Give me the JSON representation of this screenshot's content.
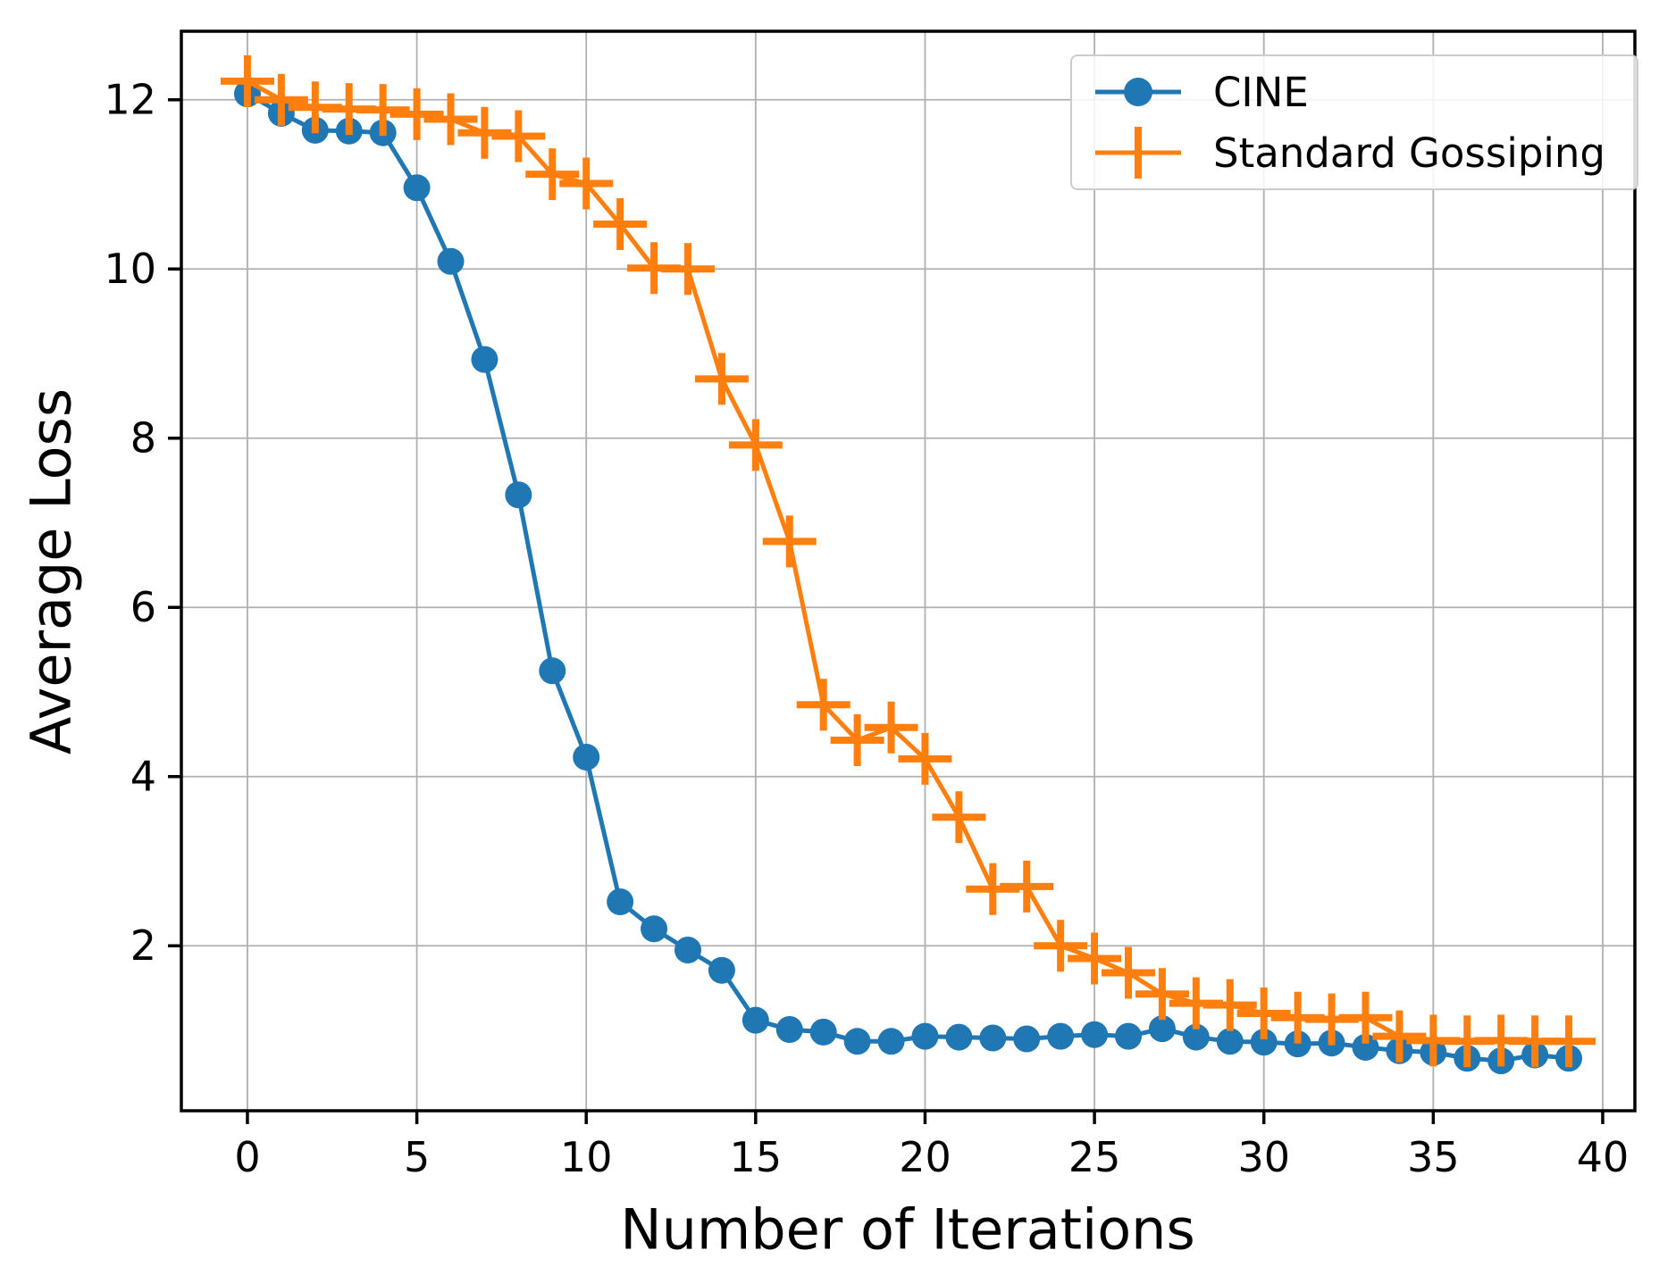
{
  "chart_data": {
    "type": "line",
    "title": "",
    "xlabel": "Number of Iterations",
    "ylabel": "Average Loss",
    "xlim": [
      -1.95,
      40.95
    ],
    "ylim": [
      0.05,
      12.81
    ],
    "x_ticks": [
      0,
      5,
      10,
      15,
      20,
      25,
      30,
      35,
      40
    ],
    "y_ticks": [
      2,
      4,
      6,
      8,
      10,
      12
    ],
    "grid": true,
    "legend_position": "upper right",
    "x": [
      0,
      1,
      2,
      3,
      4,
      5,
      6,
      7,
      8,
      9,
      10,
      11,
      12,
      13,
      14,
      15,
      16,
      17,
      18,
      19,
      20,
      21,
      22,
      23,
      24,
      25,
      26,
      27,
      28,
      29,
      30,
      31,
      32,
      33,
      34,
      35,
      36,
      37,
      38,
      39
    ],
    "series": [
      {
        "name": "CINE",
        "color": "#1f77b4",
        "marker": "circle",
        "values": [
          12.07,
          11.84,
          11.64,
          11.63,
          11.61,
          10.96,
          10.09,
          8.93,
          7.33,
          5.25,
          4.23,
          2.52,
          2.2,
          1.95,
          1.71,
          1.12,
          1.01,
          0.98,
          0.87,
          0.87,
          0.93,
          0.92,
          0.91,
          0.9,
          0.93,
          0.95,
          0.93,
          1.02,
          0.92,
          0.87,
          0.86,
          0.84,
          0.85,
          0.8,
          0.76,
          0.74,
          0.67,
          0.64,
          0.71,
          0.67
        ]
      },
      {
        "name": "Standard Gossiping",
        "color": "#ff7f0e",
        "marker": "plus",
        "values": [
          12.22,
          12.0,
          11.91,
          11.89,
          11.88,
          11.83,
          11.77,
          11.61,
          11.57,
          11.12,
          11.01,
          10.53,
          10.01,
          10.0,
          8.7,
          7.92,
          6.78,
          4.85,
          4.43,
          4.58,
          4.21,
          3.52,
          2.67,
          2.7,
          2.0,
          1.85,
          1.68,
          1.43,
          1.32,
          1.3,
          1.2,
          1.15,
          1.13,
          1.15,
          0.93,
          0.88,
          0.87,
          0.88,
          0.87,
          0.87
        ]
      }
    ],
    "colors": {
      "grid": "#b0b0b0",
      "axis": "#000000",
      "tick_label": "#000000"
    }
  }
}
